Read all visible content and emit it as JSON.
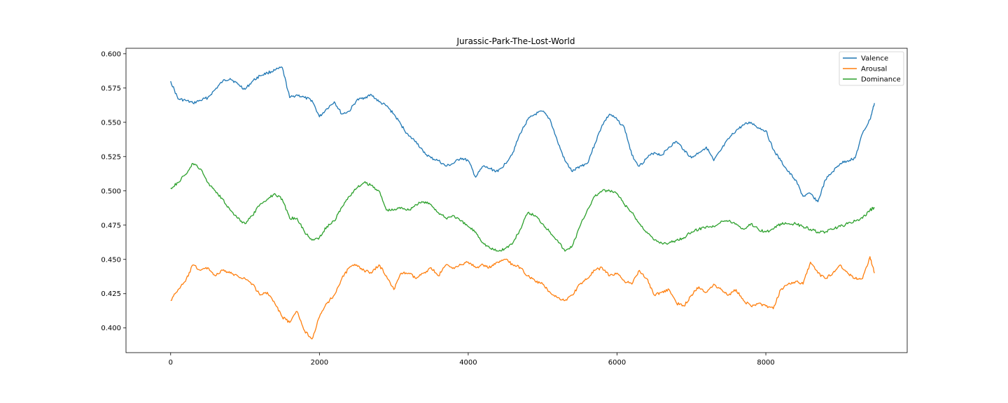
{
  "chart_data": {
    "type": "line",
    "title": "Jurassic-Park-The-Lost-World",
    "xlabel": "",
    "ylabel": "",
    "xlim": [
      -600,
      9900
    ],
    "ylim": [
      0.382,
      0.604
    ],
    "x_ticks": [
      0,
      2000,
      4000,
      6000,
      8000
    ],
    "x_tick_labels": [
      "0",
      "2000",
      "4000",
      "6000",
      "8000"
    ],
    "y_ticks": [
      0.4,
      0.425,
      0.45,
      0.475,
      0.5,
      0.525,
      0.55,
      0.575,
      0.6
    ],
    "y_tick_labels": [
      "0.400",
      "0.425",
      "0.450",
      "0.475",
      "0.500",
      "0.525",
      "0.550",
      "0.575",
      "0.600"
    ],
    "grid": false,
    "legend_position": "top-right",
    "series": [
      {
        "name": "Valence",
        "color": "#1f77b4",
        "x": [
          0,
          100,
          200,
          300,
          400,
          500,
          600,
          700,
          800,
          900,
          1000,
          1100,
          1200,
          1300,
          1400,
          1500,
          1600,
          1700,
          1800,
          1900,
          2000,
          2100,
          2200,
          2300,
          2400,
          2500,
          2600,
          2700,
          2800,
          2900,
          3000,
          3100,
          3200,
          3300,
          3400,
          3500,
          3600,
          3700,
          3800,
          3900,
          4000,
          4100,
          4200,
          4300,
          4400,
          4500,
          4600,
          4700,
          4800,
          4900,
          5000,
          5100,
          5200,
          5300,
          5400,
          5500,
          5600,
          5700,
          5800,
          5900,
          6000,
          6100,
          6200,
          6300,
          6400,
          6500,
          6600,
          6700,
          6800,
          6900,
          7000,
          7100,
          7200,
          7300,
          7400,
          7500,
          7600,
          7700,
          7800,
          7900,
          8000,
          8100,
          8200,
          8300,
          8400,
          8500,
          8600,
          8700,
          8800,
          8900,
          9000,
          9100,
          9200,
          9300,
          9400,
          9460
        ],
        "values": [
          0.58,
          0.567,
          0.566,
          0.564,
          0.566,
          0.568,
          0.574,
          0.58,
          0.582,
          0.578,
          0.574,
          0.58,
          0.584,
          0.586,
          0.588,
          0.59,
          0.568,
          0.57,
          0.568,
          0.566,
          0.554,
          0.56,
          0.565,
          0.556,
          0.558,
          0.566,
          0.568,
          0.57,
          0.565,
          0.562,
          0.556,
          0.548,
          0.54,
          0.536,
          0.528,
          0.524,
          0.522,
          0.518,
          0.52,
          0.524,
          0.522,
          0.51,
          0.518,
          0.516,
          0.514,
          0.52,
          0.528,
          0.542,
          0.552,
          0.556,
          0.558,
          0.552,
          0.536,
          0.522,
          0.514,
          0.518,
          0.52,
          0.534,
          0.548,
          0.556,
          0.552,
          0.546,
          0.526,
          0.518,
          0.524,
          0.528,
          0.526,
          0.532,
          0.536,
          0.53,
          0.524,
          0.528,
          0.532,
          0.522,
          0.53,
          0.538,
          0.544,
          0.548,
          0.55,
          0.546,
          0.544,
          0.53,
          0.522,
          0.514,
          0.508,
          0.496,
          0.498,
          0.492,
          0.508,
          0.514,
          0.52,
          0.522,
          0.524,
          0.542,
          0.552,
          0.564
        ]
      },
      {
        "name": "Arousal",
        "color": "#ff7f0e",
        "x": [
          0,
          100,
          200,
          300,
          400,
          500,
          600,
          700,
          800,
          900,
          1000,
          1100,
          1200,
          1300,
          1400,
          1500,
          1600,
          1700,
          1800,
          1900,
          2000,
          2100,
          2200,
          2300,
          2400,
          2500,
          2600,
          2700,
          2800,
          2900,
          3000,
          3100,
          3200,
          3300,
          3400,
          3500,
          3600,
          3700,
          3800,
          3900,
          4000,
          4100,
          4200,
          4300,
          4400,
          4500,
          4600,
          4700,
          4800,
          4900,
          5000,
          5100,
          5200,
          5300,
          5400,
          5500,
          5600,
          5700,
          5800,
          5900,
          6000,
          6100,
          6200,
          6300,
          6400,
          6500,
          6600,
          6700,
          6800,
          6900,
          7000,
          7100,
          7200,
          7300,
          7400,
          7500,
          7600,
          7700,
          7800,
          7900,
          8000,
          8100,
          8200,
          8300,
          8400,
          8500,
          8600,
          8700,
          8800,
          8900,
          9000,
          9100,
          9200,
          9300,
          9400,
          9460
        ],
        "values": [
          0.42,
          0.428,
          0.434,
          0.446,
          0.442,
          0.444,
          0.438,
          0.442,
          0.44,
          0.438,
          0.436,
          0.432,
          0.424,
          0.426,
          0.418,
          0.408,
          0.404,
          0.412,
          0.398,
          0.392,
          0.408,
          0.418,
          0.424,
          0.436,
          0.444,
          0.446,
          0.442,
          0.44,
          0.446,
          0.438,
          0.428,
          0.44,
          0.44,
          0.436,
          0.44,
          0.444,
          0.438,
          0.446,
          0.444,
          0.446,
          0.448,
          0.444,
          0.446,
          0.444,
          0.448,
          0.45,
          0.446,
          0.444,
          0.438,
          0.434,
          0.432,
          0.426,
          0.422,
          0.42,
          0.424,
          0.432,
          0.436,
          0.442,
          0.444,
          0.438,
          0.44,
          0.434,
          0.432,
          0.442,
          0.436,
          0.424,
          0.426,
          0.428,
          0.418,
          0.416,
          0.424,
          0.43,
          0.426,
          0.432,
          0.428,
          0.424,
          0.428,
          0.42,
          0.416,
          0.418,
          0.416,
          0.414,
          0.428,
          0.432,
          0.434,
          0.432,
          0.448,
          0.44,
          0.436,
          0.44,
          0.446,
          0.44,
          0.436,
          0.436,
          0.452,
          0.44
        ]
      },
      {
        "name": "Dominance",
        "color": "#2ca02c",
        "x": [
          0,
          100,
          200,
          300,
          400,
          500,
          600,
          700,
          800,
          900,
          1000,
          1100,
          1200,
          1300,
          1400,
          1500,
          1600,
          1700,
          1800,
          1900,
          2000,
          2100,
          2200,
          2300,
          2400,
          2500,
          2600,
          2700,
          2800,
          2900,
          3000,
          3100,
          3200,
          3300,
          3400,
          3500,
          3600,
          3700,
          3800,
          3900,
          4000,
          4100,
          4200,
          4300,
          4400,
          4500,
          4600,
          4700,
          4800,
          4900,
          5000,
          5100,
          5200,
          5300,
          5400,
          5500,
          5600,
          5700,
          5800,
          5900,
          6000,
          6100,
          6200,
          6300,
          6400,
          6500,
          6600,
          6700,
          6800,
          6900,
          7000,
          7100,
          7200,
          7300,
          7400,
          7500,
          7600,
          7700,
          7800,
          7900,
          8000,
          8100,
          8200,
          8300,
          8400,
          8500,
          8600,
          8700,
          8800,
          8900,
          9000,
          9100,
          9200,
          9300,
          9400,
          9460
        ],
        "values": [
          0.502,
          0.506,
          0.512,
          0.52,
          0.516,
          0.506,
          0.5,
          0.494,
          0.486,
          0.48,
          0.476,
          0.482,
          0.49,
          0.494,
          0.498,
          0.494,
          0.48,
          0.48,
          0.47,
          0.464,
          0.466,
          0.474,
          0.478,
          0.488,
          0.496,
          0.502,
          0.506,
          0.504,
          0.5,
          0.486,
          0.486,
          0.488,
          0.486,
          0.49,
          0.492,
          0.49,
          0.484,
          0.48,
          0.482,
          0.478,
          0.474,
          0.47,
          0.462,
          0.458,
          0.456,
          0.458,
          0.462,
          0.472,
          0.484,
          0.482,
          0.476,
          0.47,
          0.464,
          0.456,
          0.46,
          0.474,
          0.486,
          0.496,
          0.5,
          0.5,
          0.498,
          0.49,
          0.484,
          0.476,
          0.47,
          0.464,
          0.462,
          0.462,
          0.464,
          0.466,
          0.47,
          0.472,
          0.474,
          0.474,
          0.478,
          0.478,
          0.476,
          0.472,
          0.476,
          0.472,
          0.47,
          0.472,
          0.476,
          0.476,
          0.476,
          0.474,
          0.472,
          0.47,
          0.47,
          0.472,
          0.474,
          0.476,
          0.478,
          0.48,
          0.486,
          0.488
        ]
      }
    ]
  }
}
